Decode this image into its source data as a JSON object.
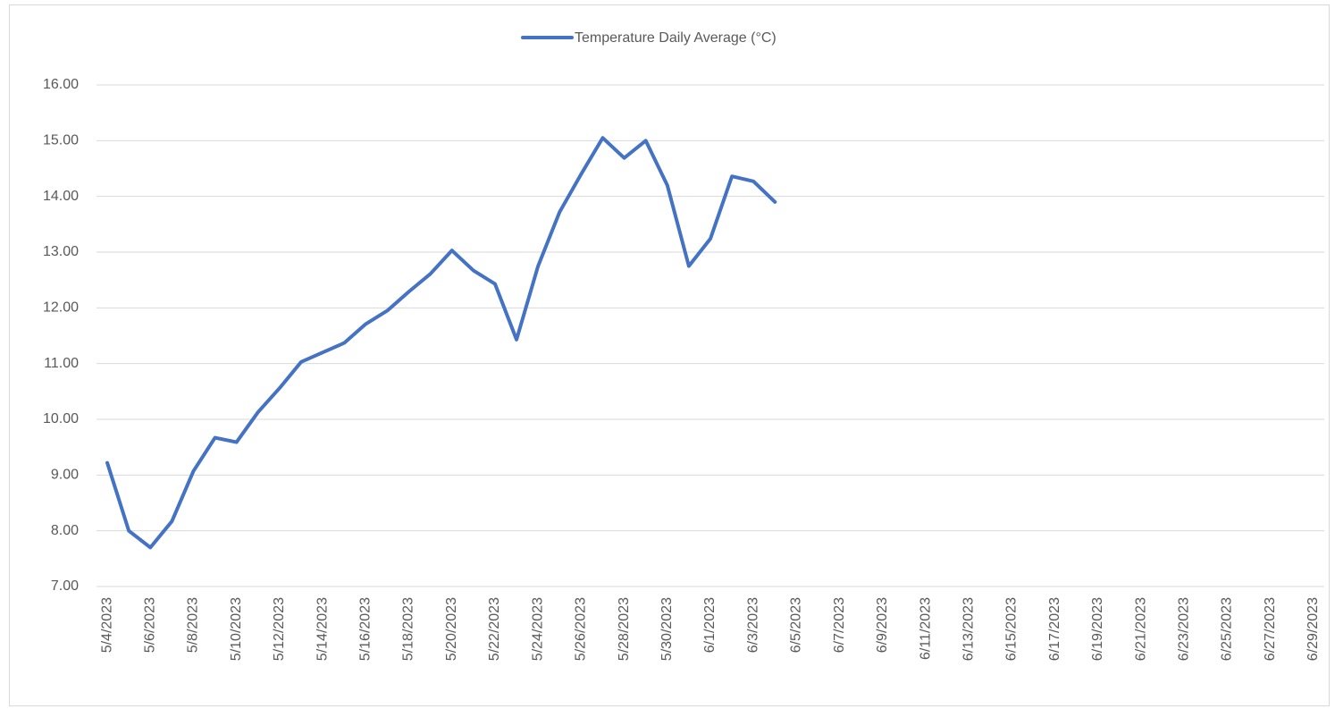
{
  "chart_data": {
    "type": "line",
    "categories": [
      "5/4/2023",
      null,
      "5/6/2023",
      null,
      "5/8/2023",
      null,
      "5/10/2023",
      null,
      "5/12/2023",
      null,
      "5/14/2023",
      null,
      "5/16/2023",
      null,
      "5/18/2023",
      null,
      "5/20/2023",
      null,
      "5/22/2023",
      null,
      "5/24/2023",
      null,
      "5/26/2023",
      null,
      "5/28/2023",
      null,
      "5/30/2023",
      null,
      "6/1/2023",
      null,
      "6/3/2023",
      null,
      "6/5/2023",
      null,
      "6/7/2023",
      null,
      "6/9/2023",
      null,
      "6/11/2023",
      null,
      "6/13/2023",
      null,
      "6/15/2023",
      null,
      "6/17/2023",
      null,
      "6/19/2023",
      null,
      "6/21/2023",
      null,
      "6/23/2023",
      null,
      "6/25/2023",
      null,
      "6/27/2023",
      null,
      "6/29/2023"
    ],
    "series": [
      {
        "name": "Temperature Daily Average (°C)",
        "color": "#4472c4",
        "values": [
          9.22,
          8.0,
          7.7,
          8.17,
          9.07,
          9.67,
          9.59,
          10.13,
          10.56,
          11.03,
          11.2,
          11.37,
          11.71,
          11.95,
          12.29,
          12.61,
          13.03,
          12.67,
          12.43,
          11.43,
          12.75,
          13.72,
          14.4,
          15.05,
          14.69,
          15.0,
          14.2,
          12.75,
          13.24,
          14.36,
          14.27,
          13.9,
          null,
          null,
          null,
          null,
          null,
          null,
          null,
          null,
          null,
          null,
          null,
          null,
          null,
          null,
          null,
          null,
          null,
          null,
          null,
          null,
          null,
          null,
          null,
          null,
          null
        ]
      }
    ],
    "ylim": [
      7,
      16
    ],
    "yticks": [
      {
        "value": 7,
        "label": "7.00"
      },
      {
        "value": 8,
        "label": "8.00"
      },
      {
        "value": 9,
        "label": "9.00"
      },
      {
        "value": 10,
        "label": "10.00"
      },
      {
        "value": 11,
        "label": "11.00"
      },
      {
        "value": 12,
        "label": "12.00"
      },
      {
        "value": 13,
        "label": "13.00"
      },
      {
        "value": 14,
        "label": "14.00"
      },
      {
        "value": 15,
        "label": "15.00"
      },
      {
        "value": 16,
        "label": "16.00"
      }
    ],
    "grid": true,
    "legend": "top"
  }
}
